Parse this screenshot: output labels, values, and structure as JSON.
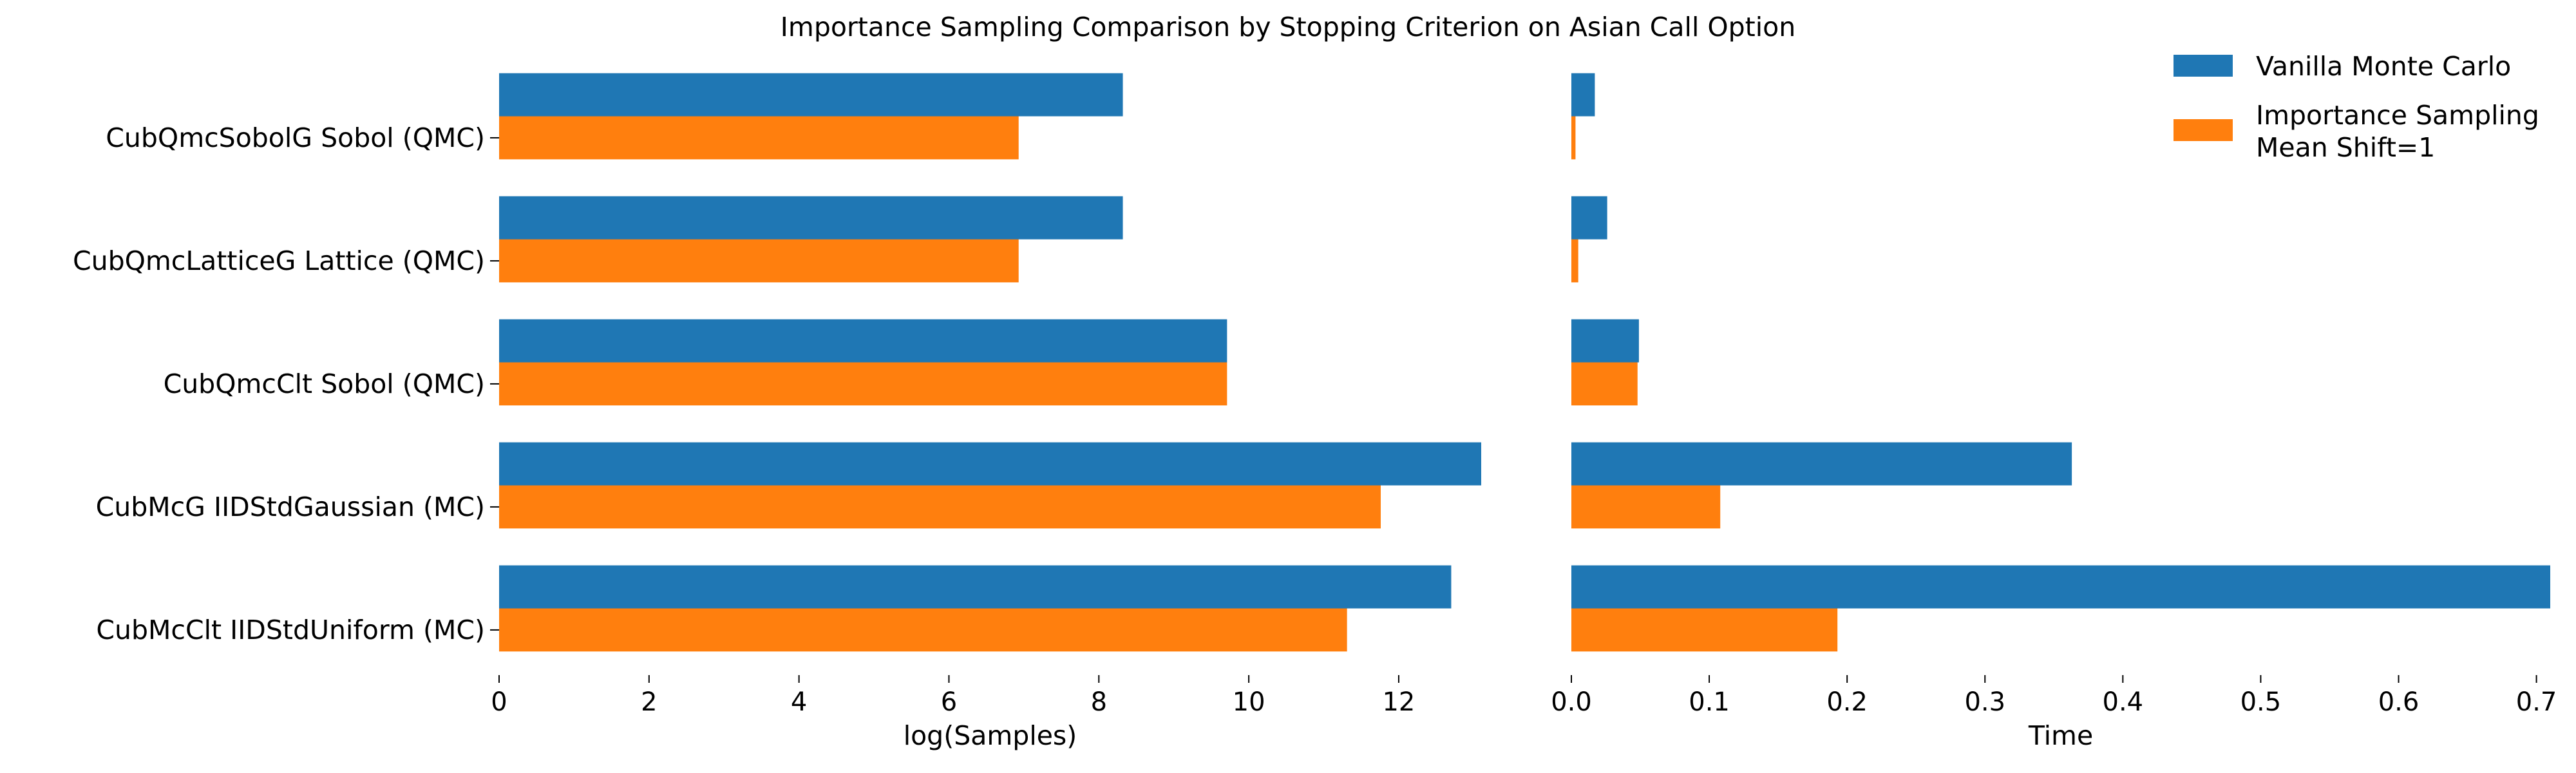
{
  "chart_data": {
    "type": "bar",
    "title": "Importance Sampling Comparison by Stopping Criterion on Asian Call Option",
    "categories": [
      "CubQmcSobolG Sobol (QMC)",
      "CubQmcLatticeG Lattice (QMC)",
      "CubQmcClt Sobol (QMC)",
      "CubMcG IIDStdGaussian (MC)",
      "CubMcClt IIDStdUniform (MC)"
    ],
    "legend": {
      "position": "top-right",
      "entries": [
        {
          "label": "Vanilla Monte Carlo",
          "color": "#1f77b4"
        },
        {
          "label": "Importance Sampling\nMean Shift=1",
          "color": "#ff7f0e"
        }
      ]
    },
    "panels": [
      {
        "orientation": "horizontal",
        "xlabel": "log(Samples)",
        "xlim": [
          0,
          13.1
        ],
        "xticks": [
          "0",
          "2",
          "4",
          "6",
          "8",
          "10",
          "12"
        ],
        "xtick_values": [
          0,
          2,
          4,
          6,
          8,
          10,
          12
        ],
        "show_category_labels": true,
        "series": [
          {
            "name": "Vanilla Monte Carlo",
            "color": "#1f77b4",
            "values": [
              8.32,
              8.32,
              9.71,
              13.1,
              12.7
            ]
          },
          {
            "name": "Importance Sampling\nMean Shift=1",
            "color": "#ff7f0e",
            "values": [
              6.93,
              6.93,
              9.71,
              11.76,
              11.31
            ]
          }
        ]
      },
      {
        "orientation": "horizontal",
        "xlabel": "Time",
        "xlim": [
          0,
          0.71
        ],
        "xticks": [
          "0.0",
          "0.1",
          "0.2",
          "0.3",
          "0.4",
          "0.5",
          "0.6",
          "0.7"
        ],
        "xtick_values": [
          0,
          0.1,
          0.2,
          0.3,
          0.4,
          0.5,
          0.6,
          0.7
        ],
        "show_category_labels": false,
        "series": [
          {
            "name": "Vanilla Monte Carlo",
            "color": "#1f77b4",
            "values": [
              0.017,
              0.026,
              0.049,
              0.363,
              0.71
            ]
          },
          {
            "name": "Importance Sampling\nMean Shift=1",
            "color": "#ff7f0e",
            "values": [
              0.003,
              0.005,
              0.048,
              0.108,
              0.193
            ]
          }
        ]
      }
    ]
  }
}
